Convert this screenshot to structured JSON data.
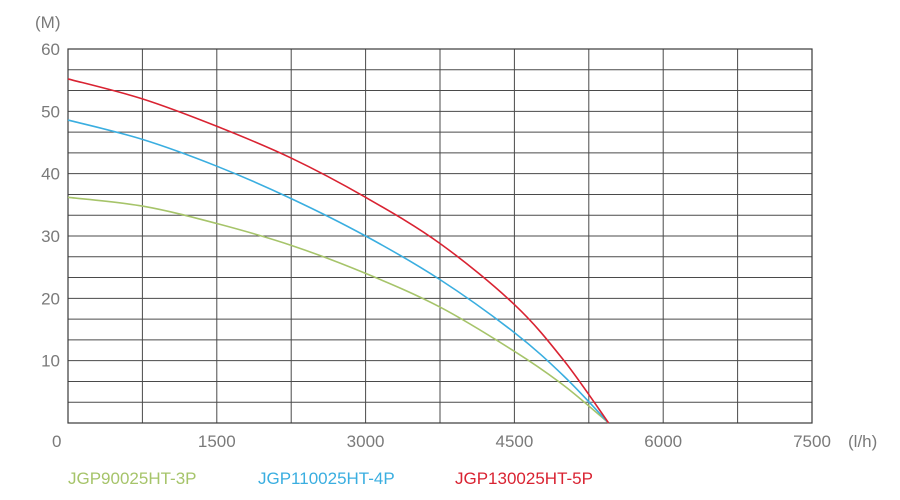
{
  "chart_data": {
    "type": "line",
    "y_unit": "(M)",
    "x_unit": "(l/h)",
    "xlim": [
      0,
      7500
    ],
    "ylim": [
      0,
      60
    ],
    "x_ticks": [
      "0",
      "1500",
      "3000",
      "4500",
      "6000",
      "7500"
    ],
    "y_ticks": [
      "10",
      "20",
      "30",
      "40",
      "50",
      "60"
    ],
    "grid": true,
    "legend_position": "bottom",
    "series": [
      {
        "name": "JGP90025HT-3P",
        "color": "#a6c46a",
        "points": [
          [
            0,
            36.2
          ],
          [
            750,
            34.8
          ],
          [
            1500,
            32.0
          ],
          [
            2250,
            28.5
          ],
          [
            3000,
            24.0
          ],
          [
            3750,
            18.6
          ],
          [
            4500,
            11.5
          ],
          [
            5000,
            6.0
          ],
          [
            5450,
            0
          ]
        ]
      },
      {
        "name": "JGP110025HT-4P",
        "color": "#3aaee0",
        "points": [
          [
            0,
            48.6
          ],
          [
            750,
            45.5
          ],
          [
            1500,
            41.2
          ],
          [
            2250,
            36.0
          ],
          [
            3000,
            30.0
          ],
          [
            3750,
            23.0
          ],
          [
            4500,
            14.5
          ],
          [
            5000,
            7.5
          ],
          [
            5450,
            0
          ]
        ]
      },
      {
        "name": "JGP130025HT-5P",
        "color": "#d92332",
        "points": [
          [
            0,
            55.2
          ],
          [
            750,
            52.0
          ],
          [
            1500,
            47.6
          ],
          [
            2250,
            42.5
          ],
          [
            3000,
            36.2
          ],
          [
            3750,
            28.8
          ],
          [
            4500,
            19.0
          ],
          [
            5000,
            10.0
          ],
          [
            5450,
            0
          ]
        ]
      }
    ]
  }
}
